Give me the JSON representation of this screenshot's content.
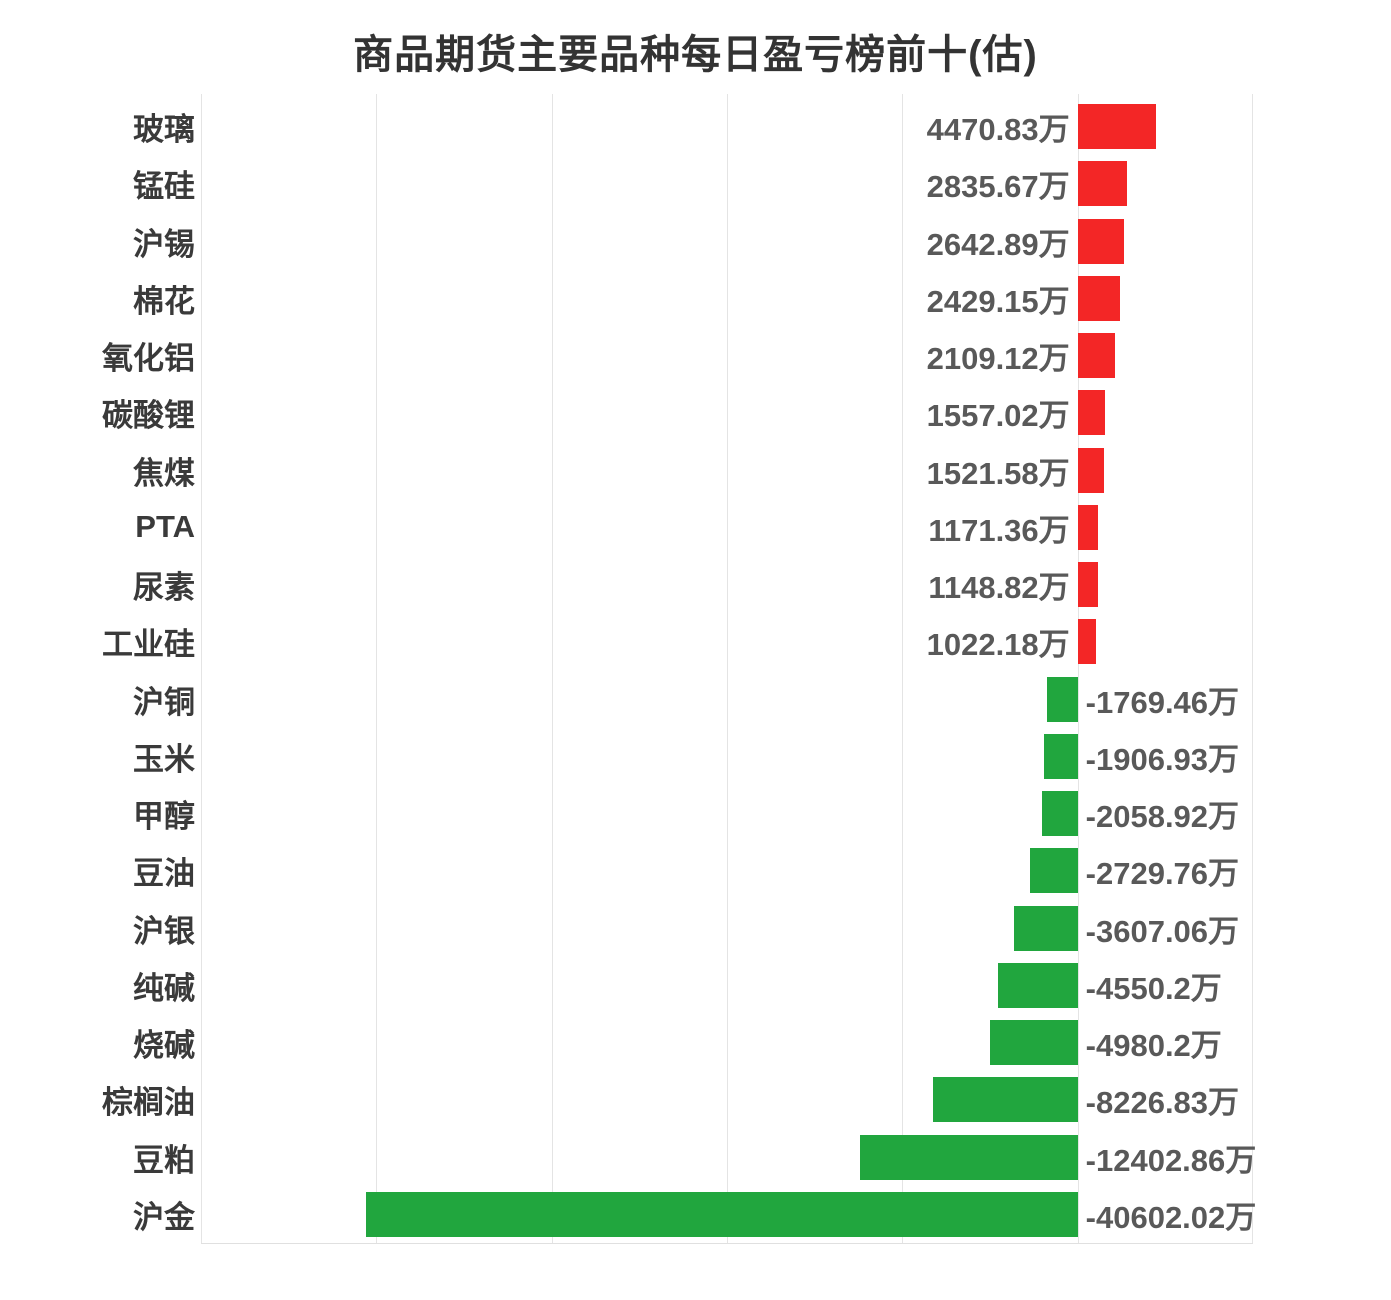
{
  "chart_data": {
    "type": "bar",
    "orientation": "horizontal",
    "title": "商品期货主要品种每日盈亏榜前十(估)",
    "unit": "万",
    "categories": [
      "玻璃",
      "锰硅",
      "沪锡",
      "棉花",
      "氧化铝",
      "碳酸锂",
      "焦煤",
      "PTA",
      "尿素",
      "工业硅",
      "沪铜",
      "玉米",
      "甲醇",
      "豆油",
      "沪银",
      "纯碱",
      "烧碱",
      "棕榈油",
      "豆粕",
      "沪金"
    ],
    "values": [
      4470.83,
      2835.67,
      2642.89,
      2429.15,
      2109.12,
      1557.02,
      1521.58,
      1171.36,
      1148.82,
      1022.18,
      -1769.46,
      -1906.93,
      -2058.92,
      -2729.76,
      -3607.06,
      -4550.2,
      -4980.2,
      -8226.83,
      -12402.86,
      -40602.02
    ],
    "value_labels": [
      "4470.83万",
      "2835.67万",
      "2642.89万",
      "2429.15万",
      "2109.12万",
      "1557.02万",
      "1521.58万",
      "1171.36万",
      "1148.82万",
      "1022.18万",
      "-1769.46万",
      "-1906.93万",
      "-2058.92万",
      "-2729.76万",
      "-3607.06万",
      "-4550.2万",
      "-4980.2万",
      "-8226.83万",
      "-12402.86万",
      "-40602.02万"
    ],
    "xlim": [
      -50000,
      10000
    ],
    "grid_step": 10000,
    "grid": true,
    "legend": false,
    "colors": {
      "positive_bar": "#f32626",
      "negative_bar": "#21a63e",
      "category_label": "#3a3a3a",
      "value_label": "#595959",
      "gridline": "#e4e4e4",
      "title": "#333333",
      "background": "#ffffff"
    }
  }
}
